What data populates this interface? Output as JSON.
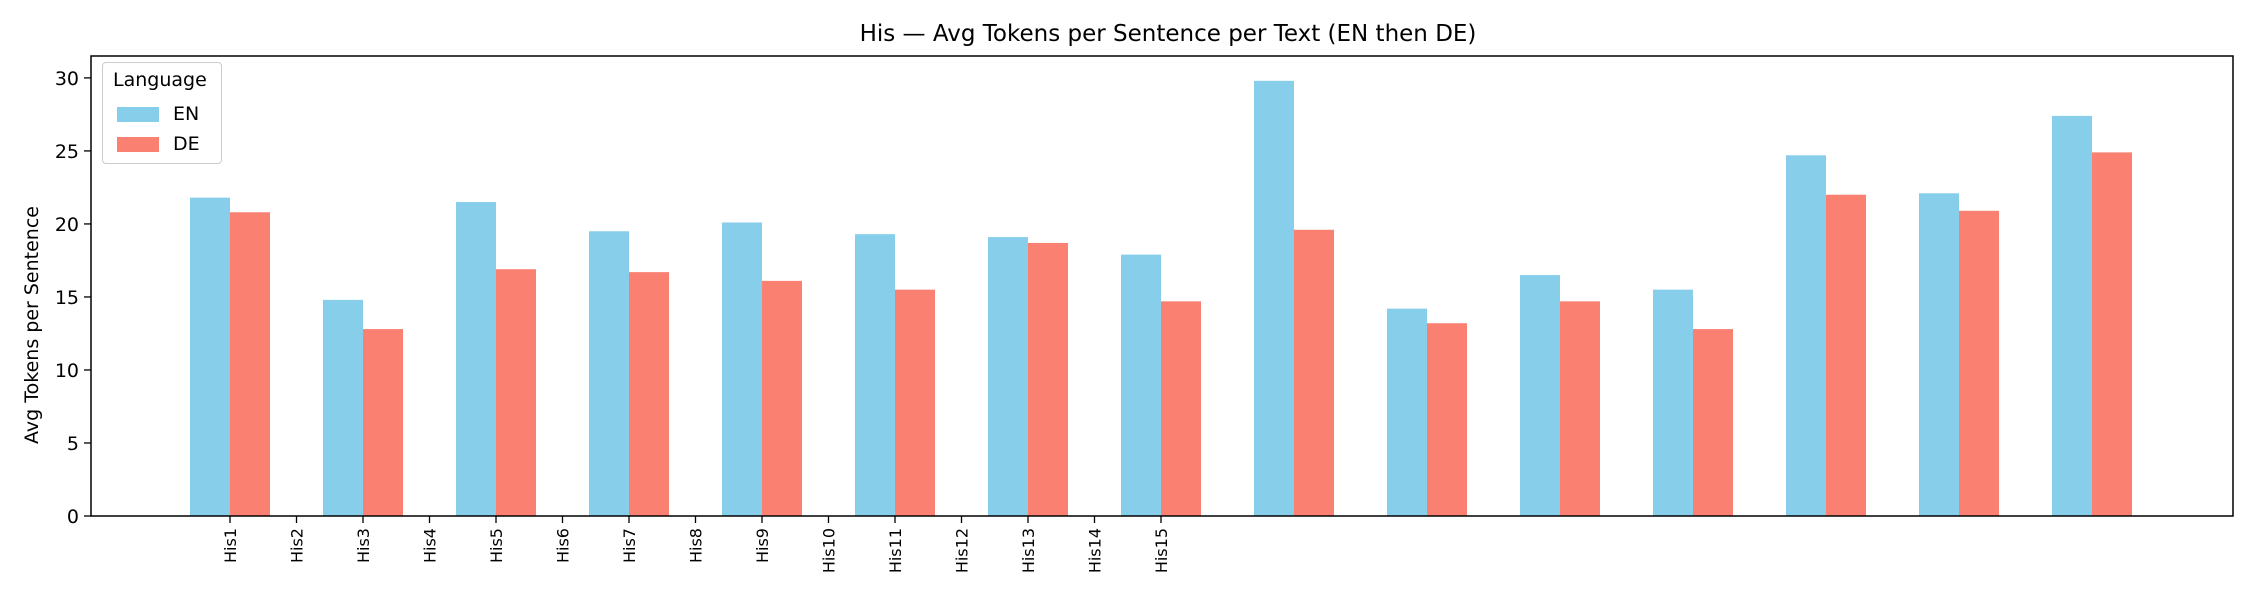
{
  "chart_data": {
    "type": "bar",
    "title": "His — Avg Tokens per Sentence per Text (EN then DE)",
    "xlabel": "",
    "ylabel": "Avg Tokens per Sentence",
    "ylim": [
      0,
      31.5
    ],
    "yticks": [
      0,
      5,
      10,
      15,
      20,
      25,
      30
    ],
    "grid": false,
    "legend": {
      "title": "Language",
      "placement": "top-left"
    },
    "tick_labels": [
      "His1",
      "His2",
      "His3",
      "His4",
      "His5",
      "His6",
      "His7",
      "His8",
      "His9",
      "His10",
      "His11",
      "His12",
      "His13",
      "His14",
      "His15"
    ],
    "series": [
      {
        "name": "EN",
        "color": "#87CEEB",
        "values": [
          21.8,
          14.8,
          21.5,
          19.5,
          20.1,
          19.3,
          19.1,
          17.9,
          29.8,
          14.2,
          16.5,
          15.5,
          24.7,
          22.1,
          27.4
        ]
      },
      {
        "name": "DE",
        "color": "#FA8072",
        "values": [
          20.8,
          12.8,
          16.9,
          16.7,
          16.1,
          15.5,
          18.7,
          14.7,
          19.6,
          13.2,
          14.7,
          12.8,
          22.0,
          20.9,
          24.9
        ]
      }
    ]
  }
}
